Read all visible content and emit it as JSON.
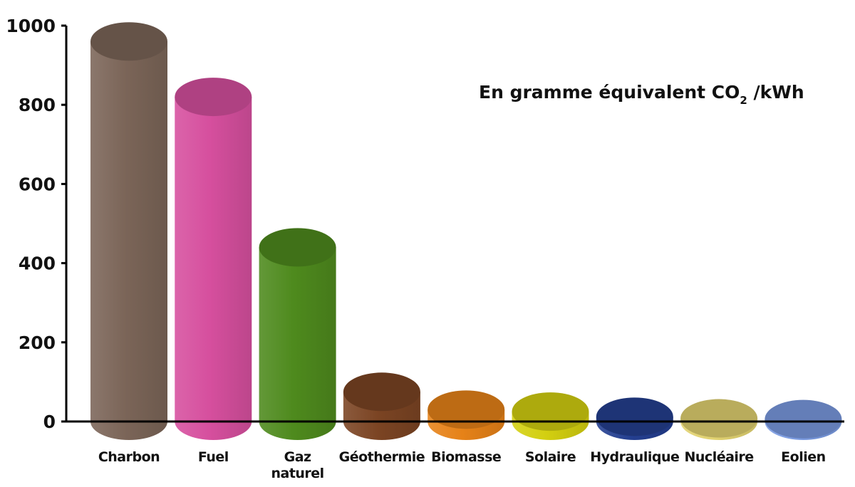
{
  "chart_data": {
    "type": "bar",
    "annotation": {
      "prefix": "En gramme équivalent CO",
      "subscript": "2",
      "suffix": " /kWh"
    },
    "ylim": [
      0,
      1000
    ],
    "yticks": [
      "0",
      "200",
      "400",
      "600",
      "800",
      "1000"
    ],
    "grid": false,
    "categories": [
      {
        "label_lines": [
          "Charbon"
        ],
        "value": 960,
        "color": "#7b6558"
      },
      {
        "label_lines": [
          "Fuel"
        ],
        "value": 820,
        "color": "#d64f9e"
      },
      {
        "label_lines": [
          "Gaz",
          "naturel"
        ],
        "value": 440,
        "color": "#4e8a1d"
      },
      {
        "label_lines": [
          "Géothermie"
        ],
        "value": 75,
        "color": "#7b4423"
      },
      {
        "label_lines": [
          "Biomasse"
        ],
        "value": 30,
        "color": "#e68218"
      },
      {
        "label_lines": [
          "Solaire"
        ],
        "value": 25,
        "color": "#d3cf10"
      },
      {
        "label_lines": [
          "Hydraulique"
        ],
        "value": 12,
        "color": "#243f90"
      },
      {
        "label_lines": [
          "Nucléaire"
        ],
        "value": 8,
        "color": "#e1d270"
      },
      {
        "label_lines": [
          "Eolien"
        ],
        "value": 6,
        "color": "#7a9ae0"
      }
    ]
  }
}
